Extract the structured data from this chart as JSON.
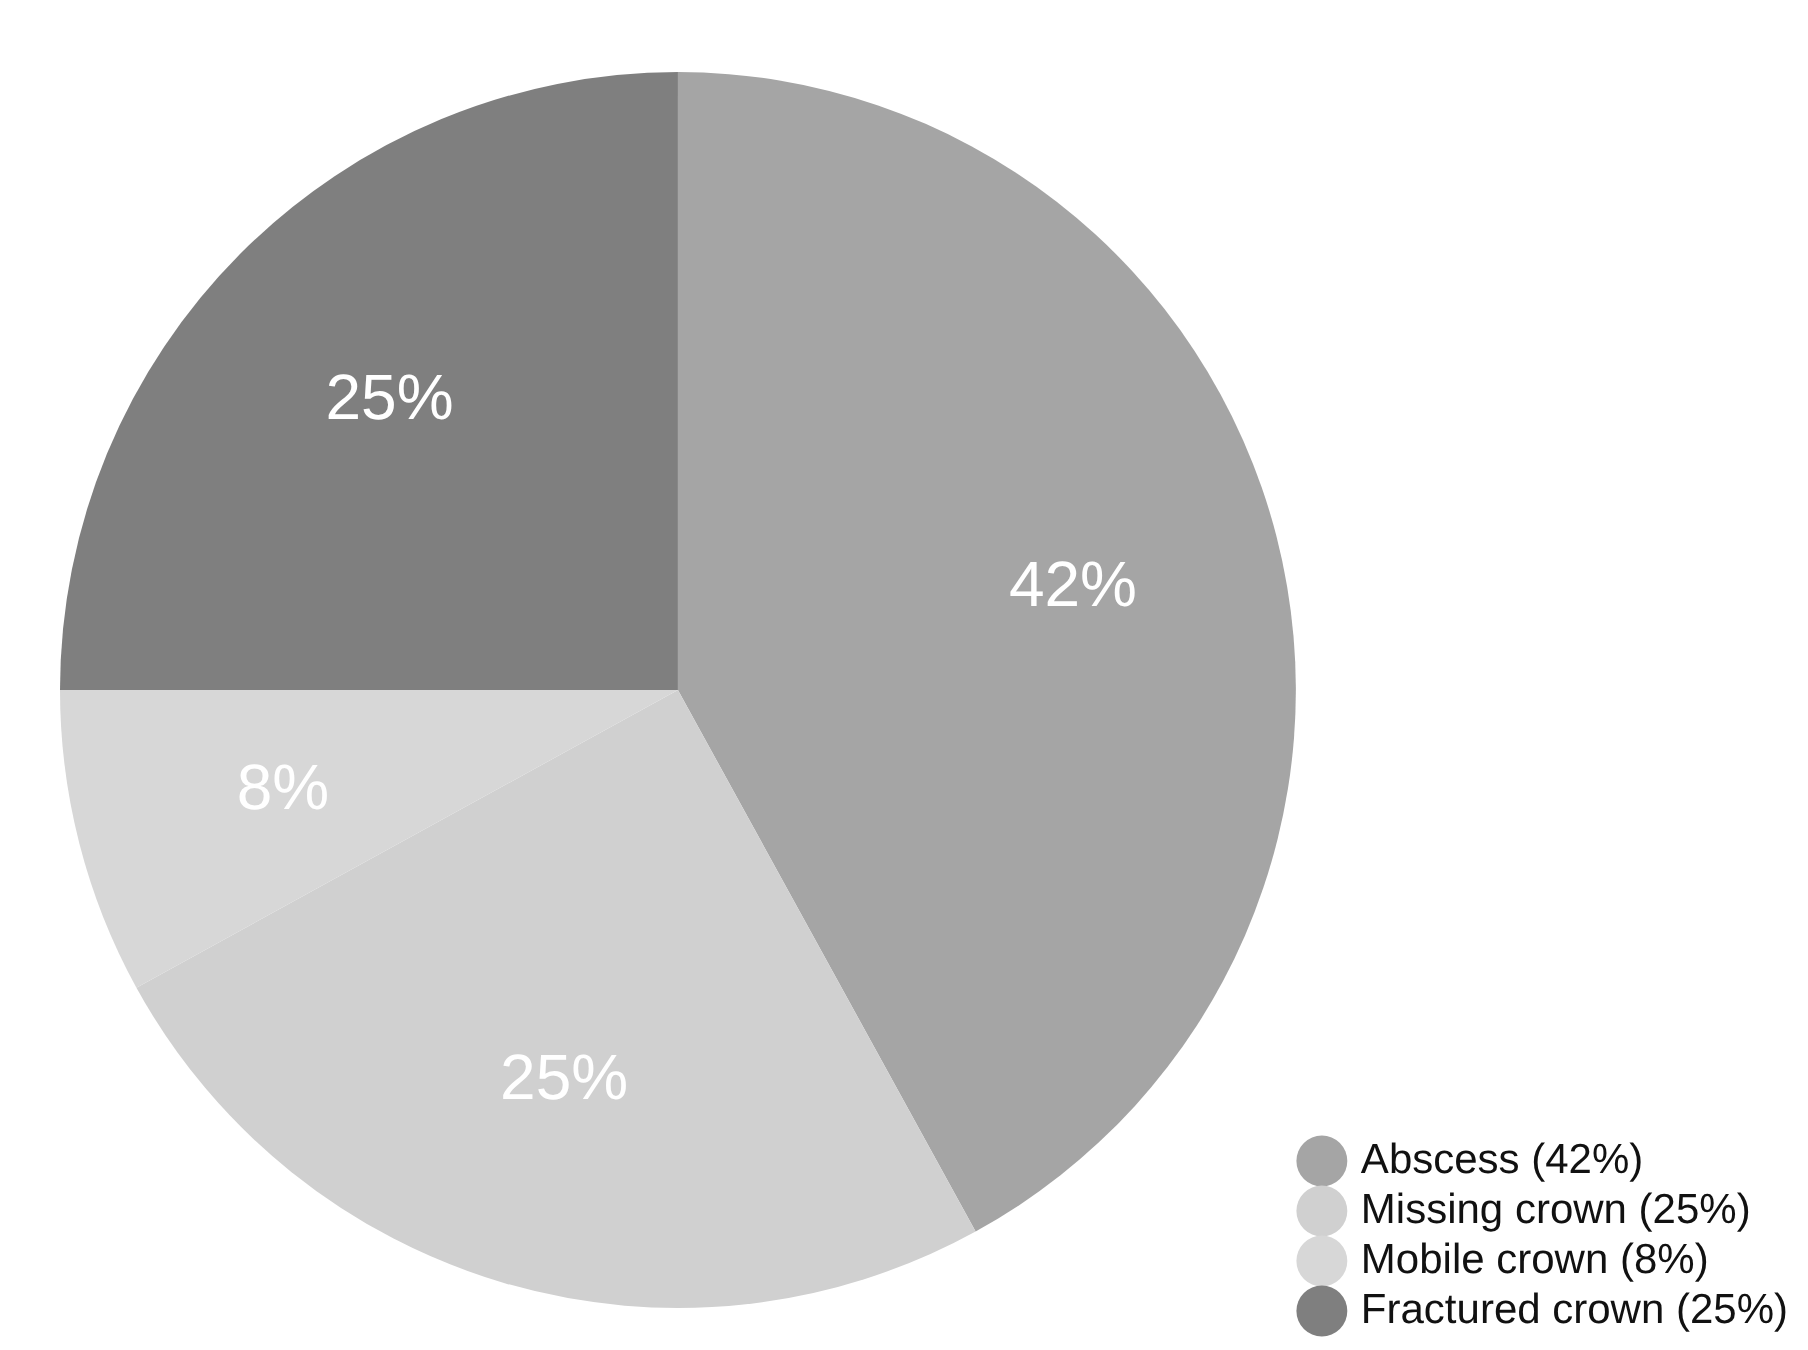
{
  "chart_data": {
    "type": "pie",
    "categories": [
      "Abscess (42%)",
      "Missing crown (25%)",
      "Mobile crown (8%)",
      "Fractured crown (25%)"
    ],
    "values": [
      42,
      25,
      8,
      25
    ],
    "colors": [
      "#a5a5a5",
      "#d0d0d0",
      "#d7d7d7",
      "#7f7f7f"
    ],
    "value_labels": [
      "42%",
      "25%",
      "8%",
      "25%"
    ],
    "legend": "bottom right"
  }
}
